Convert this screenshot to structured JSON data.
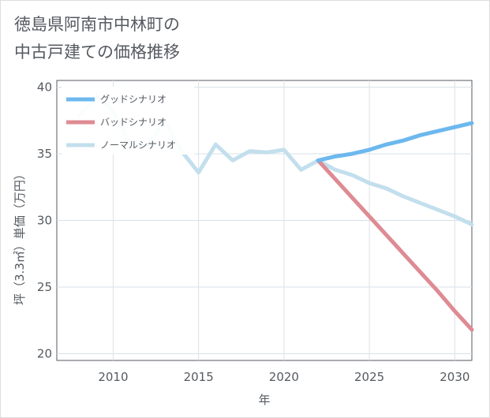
{
  "title": {
    "line1": "徳島県阿南市中林町の",
    "line2": "中古戸建ての価格推移"
  },
  "chart_data": {
    "type": "line",
    "xlabel": "年",
    "ylabel": "坪（3.3㎡）単価（万円）",
    "xlim": [
      2006.7,
      2031
    ],
    "ylim": [
      19.5,
      40.5
    ],
    "x_ticks": [
      2010,
      2015,
      2020,
      2025,
      2030
    ],
    "y_ticks": [
      20,
      25,
      30,
      35,
      40
    ],
    "grid": true,
    "legend_position": "top-left",
    "series": [
      {
        "name": "グッドシナリオ",
        "color": "#6cb8ee",
        "x": [
          2022,
          2023,
          2024,
          2025,
          2026,
          2027,
          2028,
          2029,
          2030,
          2031
        ],
        "y": [
          34.5,
          34.8,
          35.0,
          35.3,
          35.7,
          36.0,
          36.4,
          36.7,
          37.0,
          37.3
        ]
      },
      {
        "name": "バッドシナリオ",
        "color": "#de8b93",
        "x": [
          2022,
          2023,
          2024,
          2025,
          2026,
          2027,
          2028,
          2029,
          2030,
          2031
        ],
        "y": [
          34.5,
          33.1,
          31.7,
          30.3,
          28.9,
          27.5,
          26.1,
          24.7,
          23.2,
          21.8
        ]
      },
      {
        "name": "ノーマルシナリオ",
        "color": "#c3dfed",
        "x": [
          2008,
          2009,
          2010,
          2011,
          2012,
          2013,
          2014,
          2015,
          2016,
          2017,
          2018,
          2019,
          2020,
          2021,
          2022,
          2023,
          2024,
          2025,
          2026,
          2027,
          2028,
          2029,
          2030,
          2031
        ],
        "y": [
          37.8,
          39.3,
          38.2,
          35.8,
          35.6,
          37.5,
          35.2,
          33.6,
          35.7,
          34.5,
          35.2,
          35.1,
          35.3,
          33.8,
          34.5,
          33.8,
          33.4,
          32.8,
          32.4,
          31.8,
          31.3,
          30.8,
          30.3,
          29.7
        ]
      }
    ]
  }
}
